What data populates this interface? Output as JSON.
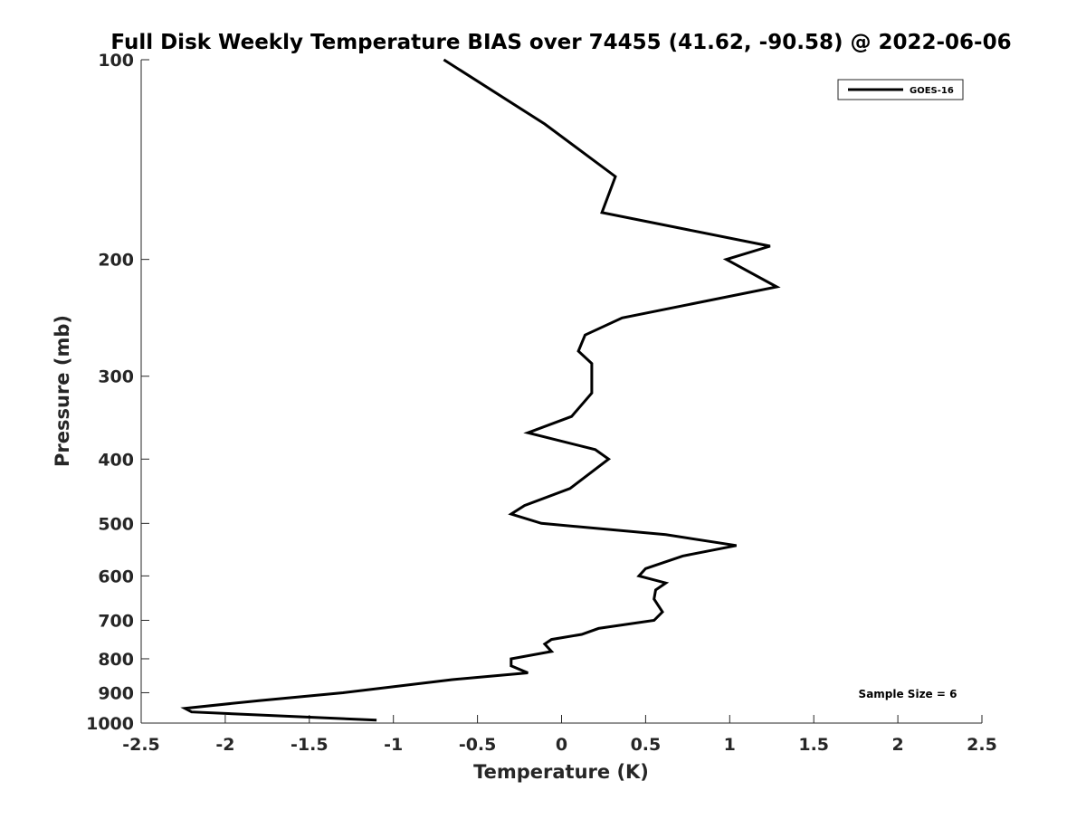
{
  "chart_data": {
    "type": "line",
    "title": "Full Disk Weekly Temperature BIAS over 74455 (41.62, -90.58) @ 2022-06-06",
    "xlabel": "Temperature (K)",
    "ylabel": "Pressure (mb)",
    "xlim": [
      -2.5,
      2.5
    ],
    "ylim": [
      100,
      1000
    ],
    "y_scale": "log",
    "y_reversed": true,
    "grid": false,
    "x_ticks": [
      -2.5,
      -2,
      -1.5,
      -1,
      -0.5,
      0,
      0.5,
      1,
      1.5,
      2,
      2.5
    ],
    "x_tick_labels": [
      "-2.5",
      "-2",
      "-1.5",
      "-1",
      "-0.5",
      "0",
      "0.5",
      "1",
      "1.5",
      "2",
      "2.5"
    ],
    "y_ticks": [
      100,
      200,
      300,
      400,
      500,
      600,
      700,
      800,
      900,
      1000
    ],
    "y_tick_labels": [
      "100",
      "200",
      "300",
      "400",
      "500",
      "600",
      "700",
      "800",
      "900",
      "1000"
    ],
    "legend_position": "top-right",
    "series": [
      {
        "name": "GOES-16",
        "color": "#000000",
        "points": [
          {
            "x": -0.7,
            "y": 100
          },
          {
            "x": -0.1,
            "y": 125
          },
          {
            "x": 0.32,
            "y": 150
          },
          {
            "x": 0.24,
            "y": 170
          },
          {
            "x": 1.24,
            "y": 191
          },
          {
            "x": 0.98,
            "y": 200
          },
          {
            "x": 1.28,
            "y": 220
          },
          {
            "x": 0.36,
            "y": 245
          },
          {
            "x": 0.14,
            "y": 260
          },
          {
            "x": 0.1,
            "y": 275
          },
          {
            "x": 0.18,
            "y": 287
          },
          {
            "x": 0.18,
            "y": 318
          },
          {
            "x": 0.06,
            "y": 345
          },
          {
            "x": -0.2,
            "y": 365
          },
          {
            "x": 0.2,
            "y": 387
          },
          {
            "x": 0.28,
            "y": 400
          },
          {
            "x": 0.05,
            "y": 443
          },
          {
            "x": -0.22,
            "y": 470
          },
          {
            "x": -0.3,
            "y": 484
          },
          {
            "x": -0.12,
            "y": 500
          },
          {
            "x": 0.62,
            "y": 520
          },
          {
            "x": 1.04,
            "y": 540
          },
          {
            "x": 0.72,
            "y": 560
          },
          {
            "x": 0.5,
            "y": 585
          },
          {
            "x": 0.46,
            "y": 600
          },
          {
            "x": 0.62,
            "y": 615
          },
          {
            "x": 0.56,
            "y": 630
          },
          {
            "x": 0.55,
            "y": 650
          },
          {
            "x": 0.6,
            "y": 680
          },
          {
            "x": 0.55,
            "y": 700
          },
          {
            "x": 0.22,
            "y": 720
          },
          {
            "x": 0.12,
            "y": 735
          },
          {
            "x": -0.06,
            "y": 748
          },
          {
            "x": -0.1,
            "y": 760
          },
          {
            "x": -0.06,
            "y": 780
          },
          {
            "x": -0.3,
            "y": 800
          },
          {
            "x": -0.3,
            "y": 820
          },
          {
            "x": -0.2,
            "y": 840
          },
          {
            "x": -0.65,
            "y": 860
          },
          {
            "x": -1.3,
            "y": 900
          },
          {
            "x": -1.8,
            "y": 925
          },
          {
            "x": -2.24,
            "y": 950
          },
          {
            "x": -2.2,
            "y": 962
          },
          {
            "x": -1.1,
            "y": 990
          }
        ]
      }
    ],
    "annotations": [
      "Sample Size = 6"
    ]
  }
}
